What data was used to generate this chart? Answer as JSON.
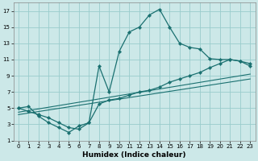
{
  "xlabel": "Humidex (Indice chaleur)",
  "bg_color": "#cce8e8",
  "grid_color": "#99cccc",
  "line_color": "#1a7070",
  "xlim": [
    -0.5,
    23.5
  ],
  "ylim": [
    1,
    18
  ],
  "xticks": [
    0,
    1,
    2,
    3,
    4,
    5,
    6,
    7,
    8,
    9,
    10,
    11,
    12,
    13,
    14,
    15,
    16,
    17,
    18,
    19,
    20,
    21,
    22,
    23
  ],
  "yticks": [
    1,
    3,
    5,
    7,
    9,
    11,
    13,
    15,
    17
  ],
  "main_x": [
    0,
    1,
    2,
    3,
    4,
    5,
    6,
    7,
    8,
    9,
    10,
    11,
    12,
    13,
    14,
    15,
    16,
    17,
    18,
    19,
    20,
    21,
    22,
    23
  ],
  "main_y": [
    5.0,
    5.2,
    4.0,
    3.2,
    2.6,
    2.0,
    2.8,
    3.2,
    10.2,
    7.0,
    12.0,
    14.4,
    15.0,
    16.5,
    17.2,
    15.0,
    13.0,
    12.5,
    12.3,
    11.1,
    11.0,
    11.0,
    10.8,
    10.5
  ],
  "line2_x": [
    0,
    1,
    2,
    3,
    4,
    5,
    6,
    7,
    8,
    9,
    10,
    11,
    12,
    13,
    14,
    15,
    16,
    17,
    18,
    19,
    20,
    21,
    22,
    23
  ],
  "line2_y": [
    5.0,
    4.6,
    4.2,
    3.8,
    3.2,
    2.6,
    2.4,
    3.2,
    5.5,
    6.0,
    6.2,
    6.6,
    7.0,
    7.2,
    7.6,
    8.2,
    8.6,
    9.0,
    9.4,
    10.0,
    10.5,
    11.0,
    10.8,
    10.2
  ],
  "line3_x": [
    0,
    23
  ],
  "line3_y": [
    4.5,
    9.2
  ],
  "line4_x": [
    0,
    23
  ],
  "line4_y": [
    4.2,
    8.6
  ],
  "xlabel_fontsize": 6.5,
  "tick_fontsize": 5.0
}
